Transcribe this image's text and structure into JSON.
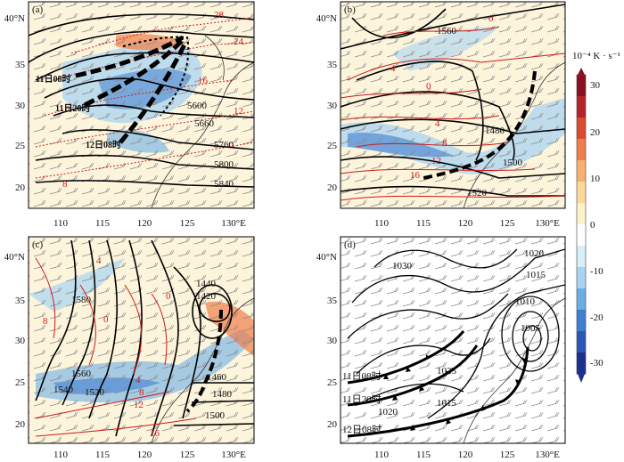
{
  "panels": [
    {
      "label": "(a)",
      "lat_labels": [
        "40°N",
        "35",
        "30",
        "25",
        "20"
      ],
      "lon_labels": [
        "110",
        "115",
        "120",
        "125",
        "130°E"
      ],
      "black_contours": [
        "5600",
        "5660",
        "5760",
        "5800",
        "5840"
      ],
      "red_contours": [
        "28",
        "24",
        "16",
        "12",
        "8"
      ],
      "trough_times": [
        "11日08时",
        "11日20时",
        "12日08时"
      ]
    },
    {
      "label": "(b)",
      "lat_labels": [
        "40°N",
        "35",
        "30",
        "25",
        "20"
      ],
      "lon_labels": [
        "110",
        "115",
        "120",
        "125",
        "130°E"
      ],
      "black_contours": [
        "1560",
        "1480",
        "1500",
        "1520"
      ],
      "red_contours": [
        "0",
        "4",
        "0",
        "4",
        "8",
        "12",
        "16"
      ]
    },
    {
      "label": "(c)",
      "lat_labels": [
        "40°N",
        "35",
        "30",
        "25",
        "20"
      ],
      "lon_labels": [
        "110",
        "115",
        "120",
        "125",
        "130°E"
      ],
      "black_contours": [
        "1580",
        "1440",
        "1420",
        "1560",
        "1540",
        "1520",
        "1460",
        "1480",
        "1500"
      ],
      "red_contours": [
        "8",
        "4",
        "0",
        "4",
        "8",
        "12",
        "16",
        "0"
      ]
    },
    {
      "label": "(d)",
      "lat_labels": [
        "40°N",
        "35",
        "30",
        "25",
        "20"
      ],
      "lon_labels": [
        "110",
        "115",
        "120",
        "125",
        "130°E"
      ],
      "black_contours": [
        "1030",
        "1020",
        "1015",
        "1010",
        "1005",
        "1025",
        "1020",
        "1015"
      ],
      "front_times": [
        "11日08时",
        "11日20时",
        "12日08时"
      ]
    }
  ],
  "colorbar": {
    "unit": "10⁻⁴ K · s⁻¹",
    "ticks": [
      "30",
      "20",
      "10",
      "0",
      "-10",
      "-20",
      "-30"
    ],
    "colors": [
      "#1e2f8f",
      "#2a56b6",
      "#3f7fd0",
      "#6aaee6",
      "#a8d4f2",
      "#d8eef8",
      "#ffffff",
      "#fff2c8",
      "#fcd99a",
      "#f8b070",
      "#f07e4a",
      "#dc4a32",
      "#b8232b",
      "#8a0f22"
    ]
  }
}
